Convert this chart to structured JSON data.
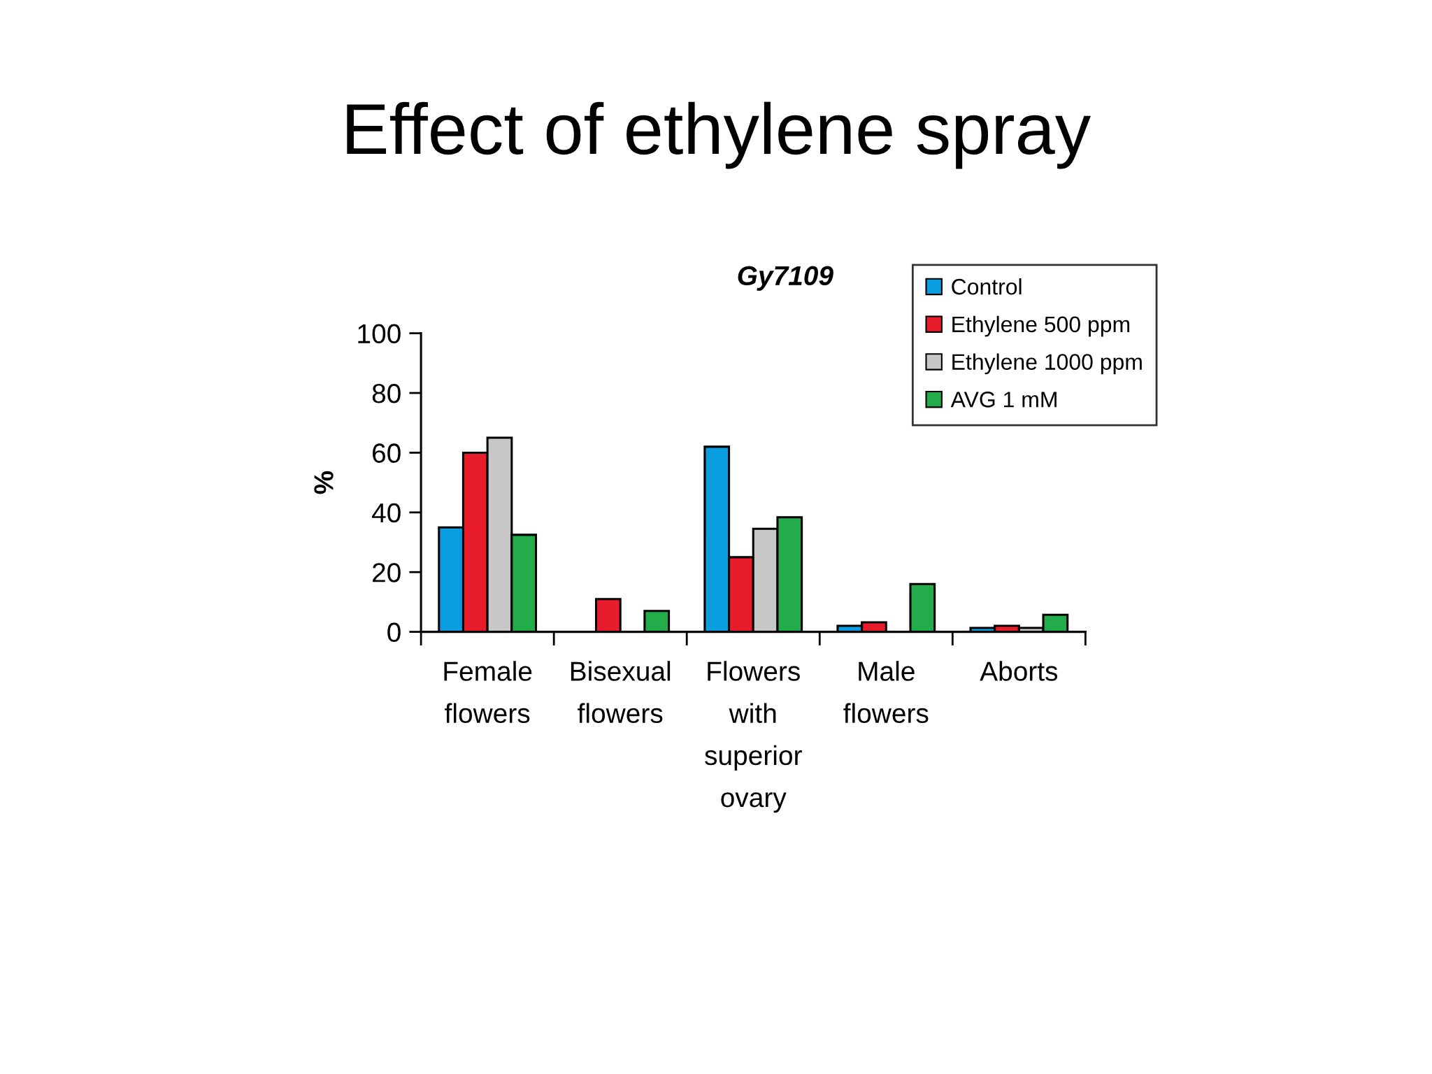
{
  "chart_data": {
    "type": "bar",
    "title": "Effect of ethylene spray",
    "subtitle": "Gy7109",
    "ylabel": "%",
    "categories": [
      "Female\nflowers",
      "Bisexual\nflowers",
      "Flowers\nwith\nsuperior\novary",
      "Male\nflowers",
      "Aborts"
    ],
    "series": [
      {
        "name": "Control",
        "color": "#0a9ee0",
        "values": [
          35,
          null,
          62,
          2,
          1.3
        ]
      },
      {
        "name": "Ethylene 500 ppm",
        "color": "#e81c2a",
        "values": [
          60,
          11,
          25,
          3.2,
          2
        ]
      },
      {
        "name": "Ethylene 1000 ppm",
        "color": "#c8c8c8",
        "values": [
          65,
          null,
          34.5,
          null,
          1.3
        ]
      },
      {
        "name": "AVG 1 mM",
        "color": "#23ac4a",
        "values": [
          32.5,
          7,
          38.4,
          16,
          5.7
        ]
      }
    ],
    "ylim": [
      0,
      100
    ],
    "yticks": [
      0,
      20,
      40,
      60,
      80,
      100
    ],
    "grid": false,
    "legend": "top right"
  }
}
